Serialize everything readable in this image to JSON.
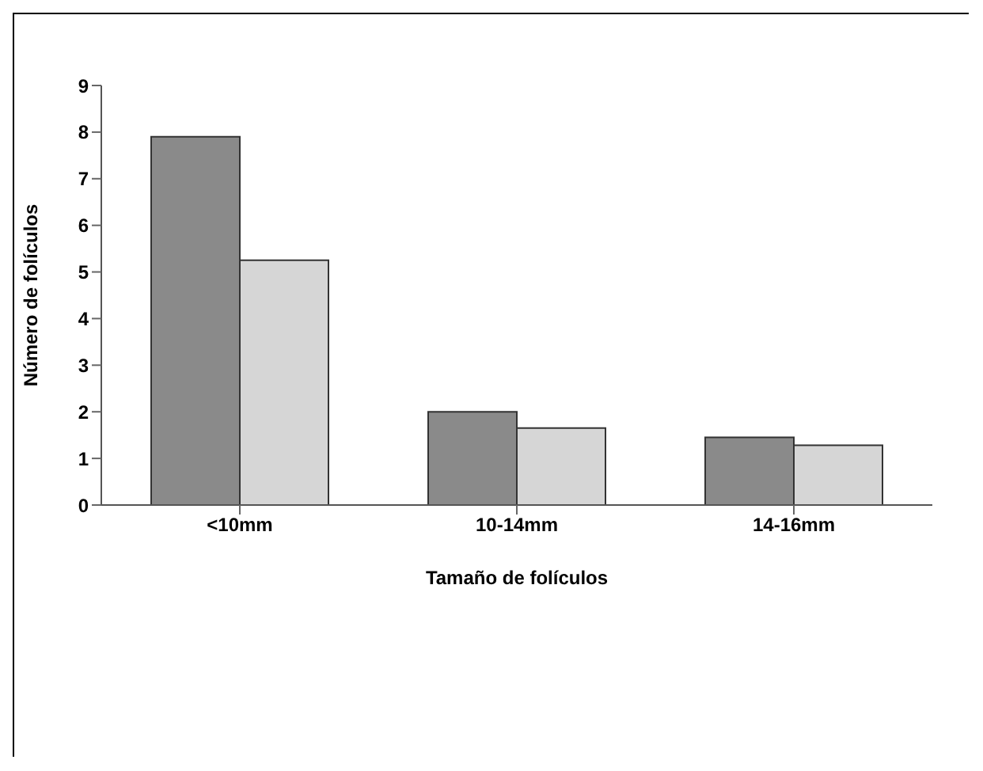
{
  "chart_data": {
    "type": "bar",
    "xlabel": "Tamaño de folículos",
    "ylabel": "Número de folículos",
    "categories": [
      "<10mm",
      "10-14mm",
      "14-16mm"
    ],
    "series": [
      {
        "color": "#8a8a8a",
        "values": [
          7.9,
          2.0,
          1.45
        ]
      },
      {
        "color": "#d6d6d6",
        "values": [
          5.25,
          1.65,
          1.28
        ]
      }
    ],
    "ylim": [
      0,
      9
    ],
    "yticks": [
      0,
      1,
      2,
      3,
      4,
      5,
      6,
      7,
      8,
      9
    ],
    "grid": false,
    "legend": false
  }
}
